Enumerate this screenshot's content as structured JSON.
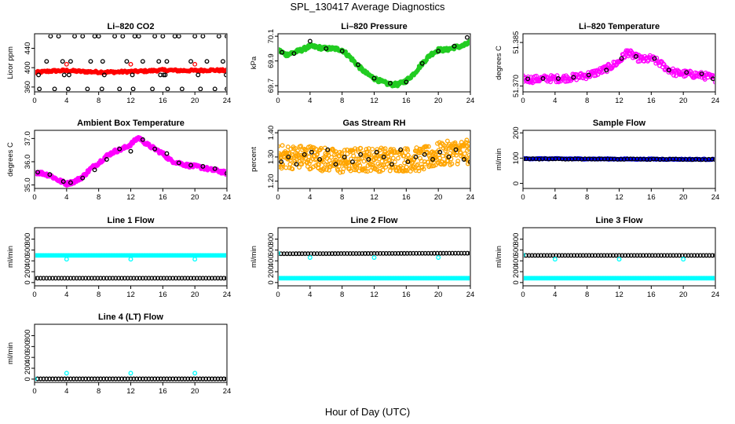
{
  "page": {
    "title": "SPL_130417  Average Diagnostics",
    "xlabel": "Hour of Day (UTC)"
  },
  "chart_data": [
    {
      "type": "scatter",
      "title": "Li–820 CO2",
      "ylabel": "Licor ppm",
      "xlim": [
        0,
        24
      ],
      "ylim": [
        350,
        470
      ],
      "xticks": [
        0,
        4,
        8,
        12,
        16,
        20,
        24
      ],
      "xtick_labels": [
        "0",
        "4",
        "8",
        "12",
        "16",
        "20",
        "24"
      ],
      "yticks": [
        360,
        400,
        440
      ],
      "ytick_labels": [
        "360",
        "400",
        "440"
      ],
      "series": [
        {
          "color": "#ff0000",
          "marker": "dot",
          "x": [
            0,
            2,
            4,
            6,
            8,
            10,
            12,
            14,
            16,
            18,
            20,
            22,
            24
          ],
          "y": [
            390,
            393,
            394,
            392,
            391,
            391,
            392,
            393,
            395,
            394,
            394,
            395,
            394
          ]
        },
        {
          "color": "#ff0000",
          "marker": "ring",
          "x": [
            4,
            12,
            20
          ],
          "y": [
            407,
            407,
            407
          ]
        },
        {
          "color": "#000000",
          "marker": "ring",
          "x": [
            2,
            3,
            5,
            6,
            7.5,
            8,
            10,
            11,
            12.5,
            13,
            15,
            16,
            17.5,
            18,
            20,
            21,
            23,
            24
          ],
          "y": [
            465,
            465,
            465,
            465,
            465,
            465,
            465,
            465,
            465,
            465,
            465,
            465,
            465,
            465,
            465,
            465,
            465,
            465
          ]
        },
        {
          "color": "#000000",
          "marker": "ring",
          "x": [
            1.5,
            3.5,
            4.5,
            7,
            8.5,
            11.5,
            13.5,
            15.5,
            16.5,
            19.5,
            21.5,
            23.5
          ],
          "y": [
            413,
            413,
            413,
            413,
            413,
            413,
            413,
            413,
            413,
            413,
            413,
            413
          ]
        },
        {
          "color": "#000000",
          "marker": "ring",
          "x": [
            0.5,
            3.7,
            4.3,
            8.7,
            12.2,
            15.7,
            16.1,
            16.3,
            20.4,
            23.9
          ],
          "y": [
            385,
            385,
            385,
            385,
            385,
            385,
            385,
            385,
            385,
            385
          ]
        },
        {
          "color": "#000000",
          "marker": "ring",
          "x": [
            0.6,
            2.5,
            4.2,
            6.6,
            8.4,
            10.6,
            12.3,
            14.7,
            16.6,
            18.4,
            20.7,
            22.5,
            24
          ],
          "y": [
            356,
            356,
            356,
            356,
            356,
            356,
            356,
            356,
            356,
            356,
            356,
            356,
            356
          ]
        }
      ]
    },
    {
      "type": "scatter",
      "title": "Li–820 Pressure",
      "ylabel": "kPa",
      "xlim": [
        0,
        24
      ],
      "ylim": [
        69.65,
        70.12
      ],
      "xticks": [
        0,
        4,
        8,
        12,
        16,
        20,
        24
      ],
      "xtick_labels": [
        "0",
        "4",
        "8",
        "12",
        "16",
        "20",
        "24"
      ],
      "yticks": [
        69.7,
        69.9,
        70.1
      ],
      "ytick_labels": [
        "69.7",
        "69.9",
        "70.1"
      ],
      "series": [
        {
          "color": "#22cc22",
          "marker": "dot",
          "x": [
            0,
            1,
            2,
            3,
            4,
            5,
            6,
            7,
            8,
            9,
            10,
            11,
            12,
            13,
            14,
            15,
            16,
            17,
            18,
            19,
            20,
            21,
            22,
            23,
            24
          ],
          "y": [
            69.99,
            69.95,
            69.97,
            69.99,
            70.02,
            70.01,
            70.0,
            70.0,
            69.99,
            69.93,
            69.86,
            69.8,
            69.76,
            69.73,
            69.71,
            69.71,
            69.74,
            69.8,
            69.88,
            69.95,
            69.99,
            69.99,
            70.01,
            70.02,
            70.05
          ]
        },
        {
          "color": "#000000",
          "marker": "ring",
          "x": [
            0.5,
            2,
            4,
            6,
            8,
            10,
            12,
            14,
            16,
            18,
            20,
            22,
            23.6
          ],
          "y": [
            69.97,
            69.96,
            70.06,
            70.0,
            69.98,
            69.87,
            69.76,
            69.72,
            69.73,
            69.88,
            69.98,
            70.02,
            70.09
          ]
        }
      ]
    },
    {
      "type": "scatter",
      "title": "Li–820 Temperature",
      "ylabel": "degrees C",
      "xlim": [
        0,
        24
      ],
      "ylim": [
        51.368,
        51.388
      ],
      "xticks": [
        0,
        4,
        8,
        12,
        16,
        20,
        24
      ],
      "xtick_labels": [
        "0",
        "4",
        "8",
        "12",
        "16",
        "20",
        "24"
      ],
      "yticks": [
        51.37,
        51.385
      ],
      "ytick_labels": [
        "51.370",
        "51.385"
      ],
      "series": [
        {
          "color": "#ff00ff",
          "marker": "ring",
          "x": [
            0,
            1,
            2,
            3,
            4,
            5,
            6,
            7,
            8,
            9,
            10,
            11,
            12,
            13,
            14,
            15,
            16,
            17,
            18,
            19,
            20,
            21,
            22,
            23,
            24
          ],
          "y": [
            51.3725,
            51.3723,
            51.3724,
            51.3726,
            51.3725,
            51.3727,
            51.3729,
            51.3733,
            51.3737,
            51.3745,
            51.3755,
            51.3768,
            51.3785,
            51.3818,
            51.38,
            51.379,
            51.3795,
            51.378,
            51.376,
            51.3745,
            51.3743,
            51.374,
            51.3738,
            51.3733,
            51.3725
          ]
        },
        {
          "color": "#000000",
          "marker": "ring",
          "x": [
            0.6,
            2.5,
            4.4,
            6.3,
            8.2,
            10.4,
            12.3,
            14.1,
            16.4,
            18.2,
            20.4,
            22.3,
            23.7
          ],
          "y": [
            51.3725,
            51.3726,
            51.3726,
            51.373,
            51.3738,
            51.3755,
            51.3795,
            51.3802,
            51.3795,
            51.3755,
            51.3747,
            51.3742,
            51.3725
          ]
        }
      ]
    },
    {
      "type": "scatter",
      "title": "Ambient Box Temperature",
      "ylabel": "degrees C",
      "xlim": [
        0,
        24
      ],
      "ylim": [
        34.85,
        37.35
      ],
      "xticks": [
        0,
        4,
        8,
        12,
        16,
        20,
        24
      ],
      "xtick_labels": [
        "0",
        "4",
        "8",
        "12",
        "16",
        "20",
        "24"
      ],
      "yticks": [
        35.0,
        36.0,
        37.0
      ],
      "ytick_labels": [
        "35.0",
        "36.0",
        "37.0"
      ],
      "series": [
        {
          "color": "#ff00ff",
          "marker": "dot",
          "x": [
            0,
            1,
            2,
            3,
            4,
            5,
            6,
            7,
            8,
            9,
            10,
            11,
            12,
            13,
            14,
            15,
            16,
            17,
            18,
            19,
            20,
            21,
            22,
            23,
            24
          ],
          "y": [
            35.55,
            35.5,
            35.4,
            35.2,
            35.05,
            35.15,
            35.35,
            35.7,
            35.95,
            36.25,
            36.45,
            36.55,
            36.75,
            37.05,
            36.75,
            36.55,
            36.35,
            36.05,
            35.95,
            35.85,
            35.8,
            35.75,
            35.65,
            35.6,
            35.5
          ]
        },
        {
          "color": "#000000",
          "marker": "ring",
          "x": [
            0.4,
            1.9,
            3.6,
            4.5,
            6,
            7.5,
            9,
            10.6,
            12,
            13.5,
            15,
            16.5,
            18,
            19.5,
            21,
            22.5,
            24
          ],
          "y": [
            35.55,
            35.45,
            35.15,
            35.1,
            35.3,
            35.65,
            36.1,
            36.55,
            36.45,
            36.95,
            36.55,
            36.35,
            35.95,
            35.85,
            35.8,
            35.7,
            35.5
          ]
        }
      ]
    },
    {
      "type": "scatter",
      "title": "Gas Stream RH",
      "ylabel": "percent",
      "xlim": [
        0,
        24
      ],
      "ylim": [
        1.17,
        1.41
      ],
      "xticks": [
        0,
        4,
        8,
        12,
        16,
        20,
        24
      ],
      "xtick_labels": [
        "0",
        "4",
        "8",
        "12",
        "16",
        "20",
        "24"
      ],
      "yticks": [
        1.2,
        1.3,
        1.4
      ],
      "ytick_labels": [
        "1.20",
        "1.30",
        "1.40"
      ],
      "series": [
        {
          "color": "#ffa500",
          "marker": "ring",
          "x": [
            0,
            2,
            4,
            6,
            8,
            10,
            12,
            14,
            16,
            18,
            20,
            22,
            24
          ],
          "y": [
            1.3,
            1.3,
            1.3,
            1.29,
            1.28,
            1.29,
            1.29,
            1.29,
            1.29,
            1.29,
            1.31,
            1.32,
            1.32
          ]
        },
        {
          "color": "#000000",
          "marker": "ring",
          "x": [
            0.4,
            1.3,
            2.3,
            3.3,
            4.2,
            5.2,
            6.2,
            7.2,
            8.3,
            9.3,
            10.3,
            11.3,
            12.3,
            13.2,
            14.2,
            15.3,
            16.2,
            17.2,
            18.3,
            19.3,
            20.2,
            21.3,
            22.2,
            23.2,
            24
          ],
          "y": [
            1.28,
            1.3,
            1.27,
            1.31,
            1.32,
            1.29,
            1.33,
            1.27,
            1.3,
            1.28,
            1.31,
            1.29,
            1.32,
            1.3,
            1.27,
            1.33,
            1.28,
            1.3,
            1.31,
            1.29,
            1.32,
            1.3,
            1.33,
            1.29,
            1.28
          ]
        }
      ]
    },
    {
      "type": "scatter",
      "title": "Sample Flow",
      "ylabel": "ml/min",
      "xlim": [
        0,
        24
      ],
      "ylim": [
        -20,
        210
      ],
      "xticks": [
        0,
        4,
        8,
        12,
        16,
        20,
        24
      ],
      "xtick_labels": [
        "0",
        "4",
        "8",
        "12",
        "16",
        "20",
        "24"
      ],
      "yticks": [
        0,
        100,
        200
      ],
      "ytick_labels": [
        "0",
        "100",
        "200"
      ],
      "series": [
        {
          "color": "#0000ff",
          "marker": "dot",
          "x": [
            0,
            24
          ],
          "y": [
            98,
            95
          ]
        },
        {
          "color": "#000000",
          "marker": "ring",
          "x": [
            0,
            24
          ],
          "y": [
            97,
            95
          ]
        }
      ]
    },
    {
      "type": "scatter",
      "title": "Line 1 Flow",
      "ylabel": "ml/min",
      "xlim": [
        0,
        24
      ],
      "ylim": [
        -60,
        1010
      ],
      "xticks": [
        0,
        4,
        8,
        12,
        16,
        20,
        24
      ],
      "xtick_labels": [
        "0",
        "4",
        "8",
        "12",
        "16",
        "20",
        "24"
      ],
      "yticks": [
        0,
        200,
        400,
        600,
        800
      ],
      "ytick_labels": [
        "0",
        "200",
        "400",
        "600",
        "800"
      ],
      "series": [
        {
          "color": "#00ffff",
          "marker": "dot",
          "x": [
            0,
            24
          ],
          "y": [
            500,
            500
          ]
        },
        {
          "color": "#00ffff",
          "marker": "ring",
          "x": [
            4,
            12,
            20
          ],
          "y": [
            430,
            430,
            430
          ]
        },
        {
          "color": "#000000",
          "marker": "ring",
          "x": [
            0,
            24
          ],
          "y": [
            80,
            80
          ]
        }
      ]
    },
    {
      "type": "scatter",
      "title": "Line 2 Flow",
      "ylabel": "ml/min",
      "xlim": [
        0,
        24
      ],
      "ylim": [
        -60,
        1010
      ],
      "xticks": [
        0,
        4,
        8,
        12,
        16,
        20,
        24
      ],
      "xtick_labels": [
        "0",
        "4",
        "8",
        "12",
        "16",
        "20",
        "24"
      ],
      "yticks": [
        0,
        200,
        400,
        600,
        800
      ],
      "ytick_labels": [
        "0",
        "200",
        "400",
        "600",
        "800"
      ],
      "series": [
        {
          "color": "#00ffff",
          "marker": "dot",
          "x": [
            0,
            24
          ],
          "y": [
            80,
            80
          ]
        },
        {
          "color": "#000000",
          "marker": "ring",
          "x": [
            0,
            24
          ],
          "y": [
            530,
            540
          ]
        },
        {
          "color": "#00ffff",
          "marker": "ring",
          "x": [
            0,
            4,
            12,
            20
          ],
          "y": [
            540,
            460,
            460,
            460
          ]
        }
      ]
    },
    {
      "type": "scatter",
      "title": "Line 3 Flow",
      "ylabel": "ml/min",
      "xlim": [
        0,
        24
      ],
      "ylim": [
        -60,
        1010
      ],
      "xticks": [
        0,
        4,
        8,
        12,
        16,
        20,
        24
      ],
      "xtick_labels": [
        "0",
        "4",
        "8",
        "12",
        "16",
        "20",
        "24"
      ],
      "yticks": [
        0,
        200,
        400,
        600,
        800
      ],
      "ytick_labels": [
        "0",
        "200",
        "400",
        "600",
        "800"
      ],
      "series": [
        {
          "color": "#00ffff",
          "marker": "dot",
          "x": [
            0,
            24
          ],
          "y": [
            80,
            80
          ]
        },
        {
          "color": "#000000",
          "marker": "ring",
          "x": [
            0,
            24
          ],
          "y": [
            500,
            500
          ]
        },
        {
          "color": "#00ffff",
          "marker": "ring",
          "x": [
            0,
            4,
            12,
            20
          ],
          "y": [
            510,
            430,
            430,
            430
          ]
        }
      ]
    },
    {
      "type": "scatter",
      "title": "Line 4 (LT) Flow",
      "ylabel": "ml/min",
      "xlim": [
        0,
        24
      ],
      "ylim": [
        -60,
        1010
      ],
      "xticks": [
        0,
        4,
        8,
        12,
        16,
        20,
        24
      ],
      "xtick_labels": [
        "0",
        "4",
        "8",
        "12",
        "16",
        "20",
        "24"
      ],
      "yticks": [
        0,
        200,
        400,
        600,
        800
      ],
      "ytick_labels": [
        "0",
        "200",
        "400",
        "600",
        "800"
      ],
      "series": [
        {
          "color": "#000000",
          "marker": "ring",
          "x": [
            0,
            24
          ],
          "y": [
            5,
            5
          ]
        },
        {
          "color": "#00ffff",
          "marker": "ring",
          "x": [
            0,
            4,
            12,
            20
          ],
          "y": [
            5,
            110,
            110,
            110
          ]
        }
      ]
    }
  ]
}
